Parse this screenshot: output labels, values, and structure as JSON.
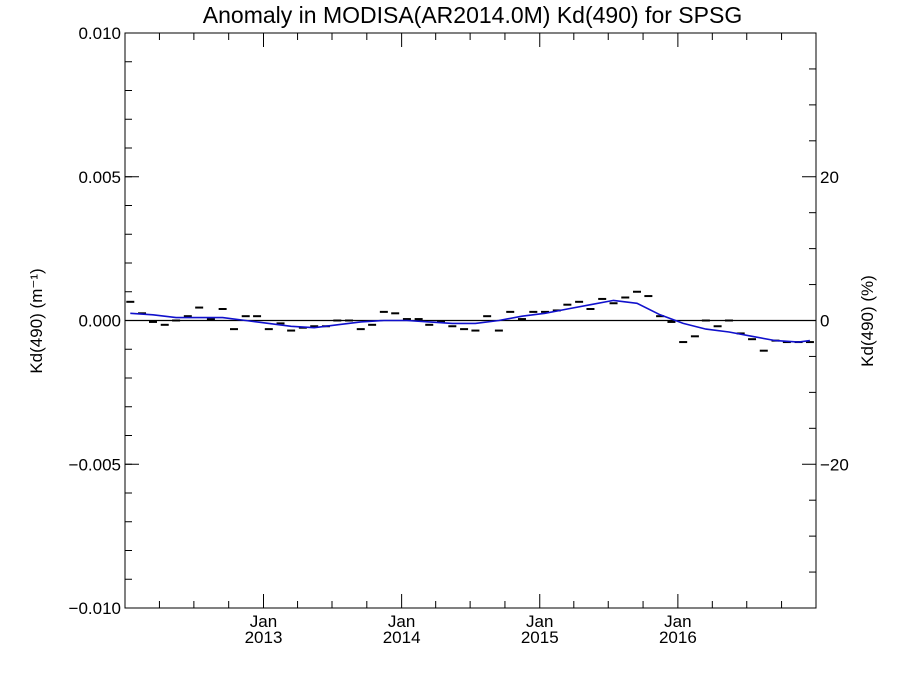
{
  "chart_data": {
    "type": "line",
    "title": "Anomaly in MODISA(AR2014.0M) Kd(490) for SPSG",
    "ylabel": "Kd(490) (m⁻¹)",
    "ylabel_right": "Kd(490) (%)",
    "xlabel": "",
    "ylim": [
      -0.01,
      0.01
    ],
    "ylim_right_percent": [
      -40,
      40
    ],
    "xlim": [
      "2012-01-01",
      "2016-12-31"
    ],
    "yticks": [
      {
        "value": 0.01,
        "label": "0.010"
      },
      {
        "value": 0.005,
        "label": "0.005"
      },
      {
        "value": 0.0,
        "label": "0.000"
      },
      {
        "value": -0.005,
        "label": "−0.005"
      },
      {
        "value": -0.01,
        "label": "−0.010"
      }
    ],
    "yticks_right": [
      {
        "value": 20,
        "label": "20"
      },
      {
        "value": 0,
        "label": "0"
      },
      {
        "value": -20,
        "label": "−20"
      }
    ],
    "xticks": [
      {
        "date": "2013-01-01",
        "month": "Jan",
        "year": "2013"
      },
      {
        "date": "2014-01-01",
        "month": "Jan",
        "year": "2014"
      },
      {
        "date": "2015-01-01",
        "month": "Jan",
        "year": "2015"
      },
      {
        "date": "2016-01-01",
        "month": "Jan",
        "year": "2016"
      }
    ],
    "zero_line": true,
    "series": [
      {
        "kind": "monthly-anomaly-markers",
        "color": "#000000",
        "points": [
          [
            "2012-01",
            0.00065
          ],
          [
            "2012-02",
            0.00025
          ],
          [
            "2012-03",
            -5e-05
          ],
          [
            "2012-04",
            -0.00015
          ],
          [
            "2012-05",
            0.0
          ],
          [
            "2012-06",
            0.00015
          ],
          [
            "2012-07",
            0.00045
          ],
          [
            "2012-08",
            5e-05
          ],
          [
            "2012-09",
            0.0004
          ],
          [
            "2012-10",
            -0.0003
          ],
          [
            "2012-11",
            0.00015
          ],
          [
            "2012-12",
            0.00015
          ],
          [
            "2013-01",
            -0.0003
          ],
          [
            "2013-02",
            -0.0001
          ],
          [
            "2013-03",
            -0.00035
          ],
          [
            "2013-04",
            -0.00025
          ],
          [
            "2013-05",
            -0.0002
          ],
          [
            "2013-06",
            -0.0002
          ],
          [
            "2013-07",
            0.0
          ],
          [
            "2013-08",
            0.0
          ],
          [
            "2013-09",
            -0.0003
          ],
          [
            "2013-10",
            -0.00015
          ],
          [
            "2013-11",
            0.0003
          ],
          [
            "2013-12",
            0.00025
          ],
          [
            "2014-01",
            5e-05
          ],
          [
            "2014-02",
            5e-05
          ],
          [
            "2014-03",
            -0.00015
          ],
          [
            "2014-04",
            -5e-05
          ],
          [
            "2014-05",
            -0.0002
          ],
          [
            "2014-06",
            -0.0003
          ],
          [
            "2014-07",
            -0.00035
          ],
          [
            "2014-08",
            0.00015
          ],
          [
            "2014-09",
            -0.00035
          ],
          [
            "2014-10",
            0.0003
          ],
          [
            "2014-11",
            5e-05
          ],
          [
            "2014-12",
            0.0003
          ],
          [
            "2015-01",
            0.0003
          ],
          [
            "2015-02",
            0.00035
          ],
          [
            "2015-03",
            0.00055
          ],
          [
            "2015-04",
            0.00065
          ],
          [
            "2015-05",
            0.0004
          ],
          [
            "2015-06",
            0.00075
          ],
          [
            "2015-07",
            0.0006
          ],
          [
            "2015-08",
            0.0008
          ],
          [
            "2015-09",
            0.001
          ],
          [
            "2015-10",
            0.00085
          ],
          [
            "2015-11",
            0.00015
          ],
          [
            "2015-12",
            -5e-05
          ],
          [
            "2016-01",
            -0.00075
          ],
          [
            "2016-02",
            -0.00055
          ],
          [
            "2016-03",
            0.0
          ],
          [
            "2016-04",
            -0.0002
          ],
          [
            "2016-05",
            0.0
          ],
          [
            "2016-06",
            -0.00045
          ],
          [
            "2016-07",
            -0.00065
          ],
          [
            "2016-08",
            -0.00105
          ],
          [
            "2016-09",
            -0.0007
          ],
          [
            "2016-10",
            -0.00075
          ],
          [
            "2016-11",
            -0.00075
          ],
          [
            "2016-12",
            -0.00075
          ]
        ]
      },
      {
        "kind": "smoothed-line",
        "color": "#1010cc",
        "points": [
          [
            "2012-01",
            0.00025
          ],
          [
            "2012-03",
            0.0002
          ],
          [
            "2012-05",
            0.0001
          ],
          [
            "2012-07",
            0.0001
          ],
          [
            "2012-09",
            0.0001
          ],
          [
            "2012-11",
            0.0
          ],
          [
            "2013-01",
            -0.0001
          ],
          [
            "2013-03",
            -0.0002
          ],
          [
            "2013-05",
            -0.00025
          ],
          [
            "2013-07",
            -0.00015
          ],
          [
            "2013-09",
            -5e-05
          ],
          [
            "2013-11",
            0.0
          ],
          [
            "2014-01",
            0.0
          ],
          [
            "2014-03",
            -5e-05
          ],
          [
            "2014-05",
            -0.0001
          ],
          [
            "2014-07",
            -0.0001
          ],
          [
            "2014-09",
            0.0
          ],
          [
            "2014-11",
            0.00015
          ],
          [
            "2015-01",
            0.00025
          ],
          [
            "2015-03",
            0.0004
          ],
          [
            "2015-05",
            0.00055
          ],
          [
            "2015-07",
            0.0007
          ],
          [
            "2015-09",
            0.0006
          ],
          [
            "2015-11",
            0.0002
          ],
          [
            "2016-01",
            -0.0001
          ],
          [
            "2016-03",
            -0.0003
          ],
          [
            "2016-05",
            -0.0004
          ],
          [
            "2016-07",
            -0.00055
          ],
          [
            "2016-09",
            -0.0007
          ],
          [
            "2016-11",
            -0.00075
          ],
          [
            "2016-12",
            -0.0007
          ]
        ]
      }
    ]
  }
}
